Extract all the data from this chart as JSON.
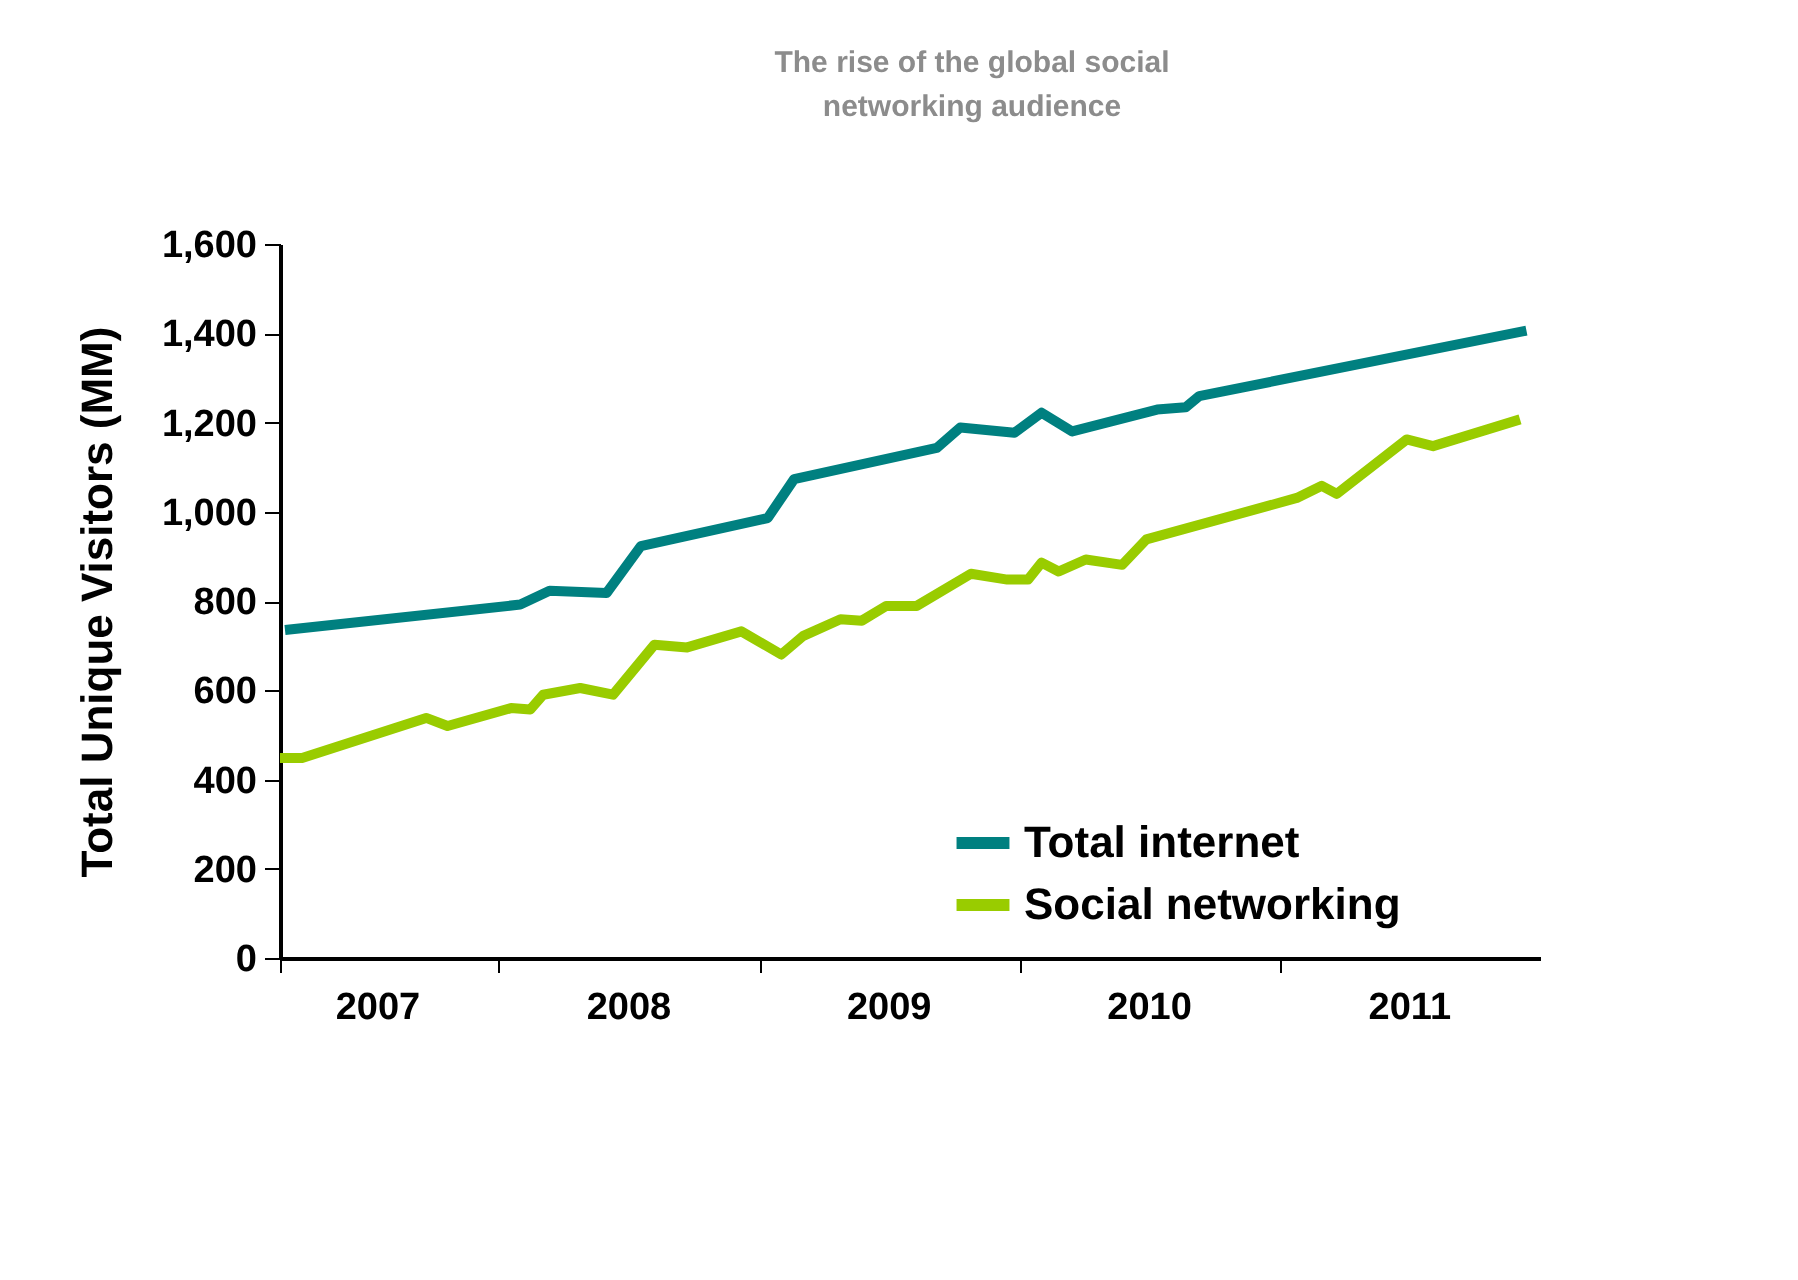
{
  "chart_data": {
    "type": "line",
    "title": [
      "The rise of the global social",
      "networking audience"
    ],
    "ylabel": "Total Unique Visitors (MM)",
    "xlim": [
      "2007-03-01",
      "2012-01-01"
    ],
    "xticks": [
      {
        "value": "2007-03-01",
        "label": null
      },
      {
        "value": "2007-07-15",
        "label": "2007"
      },
      {
        "value": "2008-01-01",
        "label": null
      },
      {
        "value": "2008-07-01",
        "label": "2008"
      },
      {
        "value": "2009-01-01",
        "label": null
      },
      {
        "value": "2009-07-01",
        "label": "2009"
      },
      {
        "value": "2010-01-01",
        "label": null
      },
      {
        "value": "2010-07-01",
        "label": "2010"
      },
      {
        "value": "2011-01-01",
        "label": null
      },
      {
        "value": "2011-07-01",
        "label": "2011"
      }
    ],
    "ylim": [
      0,
      1600
    ],
    "yticks": [
      {
        "value": 0,
        "label": "0"
      },
      {
        "value": 200,
        "label": "200"
      },
      {
        "value": 400,
        "label": "400"
      },
      {
        "value": 600,
        "label": "600"
      },
      {
        "value": 800,
        "label": "800"
      },
      {
        "value": 1000,
        "label": "1,000"
      },
      {
        "value": 1200,
        "label": "1,200"
      },
      {
        "value": 1400,
        "label": "1,400"
      },
      {
        "value": 1600,
        "label": "1,600"
      }
    ],
    "grid": false,
    "legend": "bottom right",
    "line_style": "solid",
    "series": [
      {
        "name": "Total internet",
        "color": "#008080",
        "x": [
          "2007-03-08",
          "2008-02-01",
          "2008-03-13",
          "2008-06-01",
          "2008-07-19",
          "2009-01-13",
          "2009-02-19",
          "2009-09-07",
          "2009-10-10",
          "2009-12-25",
          "2010-02-01",
          "2010-03-16",
          "2010-07-13",
          "2010-08-22",
          "2010-09-10",
          "2011-12-13"
        ],
        "values": [
          735,
          792,
          823,
          818,
          923,
          986,
          1073,
          1143,
          1189,
          1177,
          1222,
          1180,
          1229,
          1234,
          1259,
          1406
        ]
      },
      {
        "name": "Social networking",
        "color": "#99cc00",
        "x": [
          "2007-03-01",
          "2007-04-01",
          "2007-09-22",
          "2007-10-22",
          "2008-01-19",
          "2008-02-15",
          "2008-03-04",
          "2008-04-25",
          "2008-06-10",
          "2008-08-07",
          "2008-09-22",
          "2008-12-07",
          "2009-02-01",
          "2009-03-04",
          "2009-04-25",
          "2009-05-25",
          "2009-06-28",
          "2009-08-10",
          "2009-10-25",
          "2009-12-15",
          "2010-01-13",
          "2010-02-01",
          "2010-02-25",
          "2010-04-04",
          "2010-05-25",
          "2010-06-28",
          "2011-01-25",
          "2011-03-01",
          "2011-03-22",
          "2011-06-28",
          "2011-08-04",
          "2011-12-04"
        ],
        "values": [
          448,
          448,
          538,
          520,
          560,
          557,
          590,
          605,
          590,
          702,
          696,
          732,
          680,
          722,
          759,
          756,
          789,
          789,
          861,
          848,
          848,
          886,
          866,
          893,
          881,
          938,
          1031,
          1058,
          1040,
          1162,
          1147,
          1207
        ]
      }
    ]
  }
}
